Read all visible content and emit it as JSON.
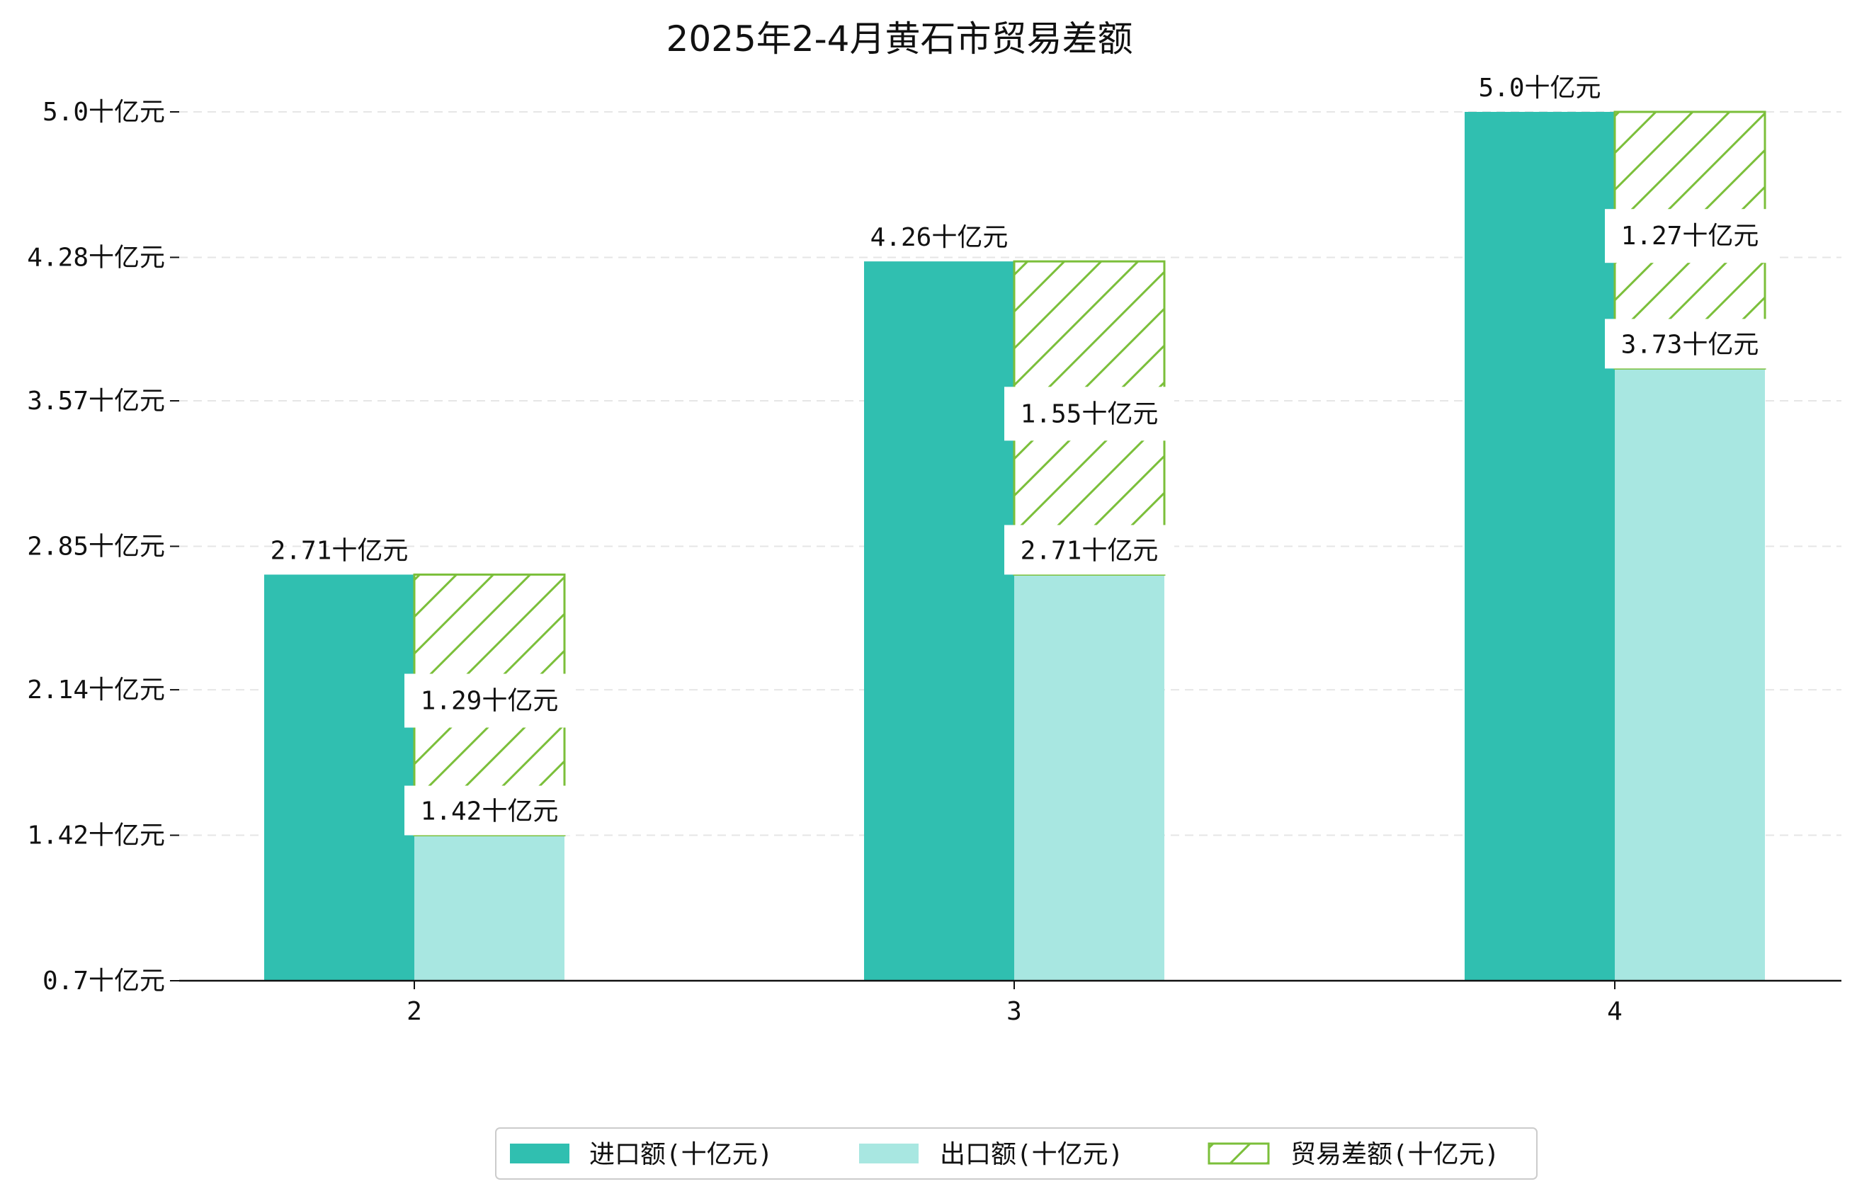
{
  "chart_data": {
    "type": "bar",
    "title": "2025年2-4月黄石市贸易差额",
    "categories": [
      "2",
      "3",
      "4"
    ],
    "unit_suffix": "十亿元",
    "ylim": [
      0.7,
      5.0
    ],
    "yticks": [
      0.7,
      1.42,
      2.14,
      2.85,
      3.57,
      4.28,
      5.0
    ],
    "ytick_labels": [
      "0.7十亿元",
      "1.42十亿元",
      "2.14十亿元",
      "2.85十亿元",
      "3.57十亿元",
      "4.28十亿元",
      "5.0十亿元"
    ],
    "grid": "horizontal-dashed",
    "legend_position": "bottom-center",
    "series": [
      {
        "name": "进口额(十亿元)",
        "key": "import",
        "color": "#30bfb0",
        "values": [
          2.71,
          4.26,
          5.0
        ],
        "labels": [
          "2.71十亿元",
          "4.26十亿元",
          "5.0十亿元"
        ]
      },
      {
        "name": "出口额(十亿元)",
        "key": "export",
        "color": "#a8e7e1",
        "values": [
          1.42,
          2.71,
          3.73
        ],
        "labels": [
          "1.42十亿元",
          "2.71十亿元",
          "3.73十亿元"
        ]
      },
      {
        "name": "贸易差额(十亿元)",
        "key": "balance",
        "color": "#7bbf3a",
        "hatch": true,
        "values": [
          1.29,
          1.55,
          1.27
        ],
        "labels": [
          "1.29十亿元",
          "1.55十亿元",
          "1.27十亿元"
        ]
      }
    ]
  }
}
